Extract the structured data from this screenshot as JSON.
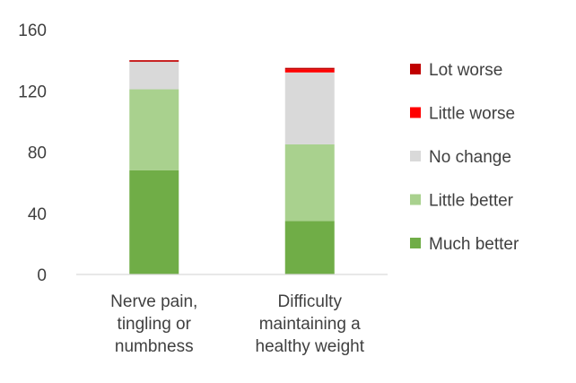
{
  "chart_data": {
    "type": "bar",
    "stacked": true,
    "categories": [
      [
        "Nerve pain,",
        "tingling or",
        "numbness"
      ],
      [
        "Difficulty",
        "maintaining a",
        "healthy weight"
      ]
    ],
    "series": [
      {
        "name": "Much better",
        "color": "#70AD47",
        "values": [
          68,
          35
        ]
      },
      {
        "name": "Little better",
        "color": "#A9D18E",
        "values": [
          53,
          50
        ]
      },
      {
        "name": "No change",
        "color": "#D9D9D9",
        "values": [
          18,
          47
        ]
      },
      {
        "name": "Little worse",
        "color": "#FF0000",
        "values": [
          0,
          2
        ]
      },
      {
        "name": "Lot worse",
        "color": "#C00000",
        "values": [
          1,
          1
        ]
      }
    ],
    "ylim": [
      0,
      160
    ],
    "yticks": [
      0,
      40,
      80,
      120,
      160
    ],
    "grid": false,
    "legend_position": "right",
    "title": "",
    "xlabel": "",
    "ylabel": ""
  }
}
